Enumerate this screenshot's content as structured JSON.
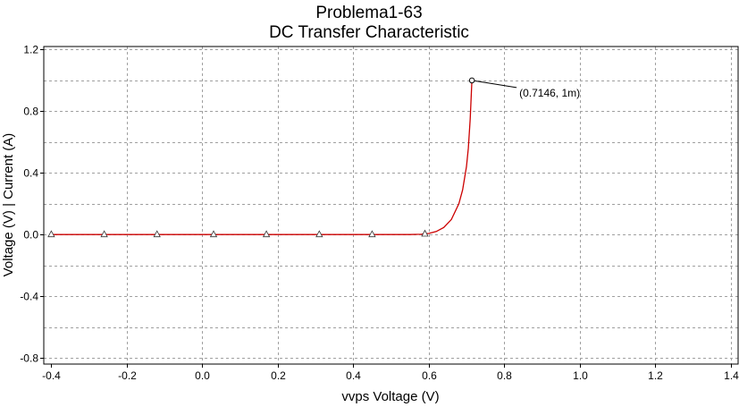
{
  "chart_data": {
    "type": "line",
    "title": "Problema1-63",
    "subtitle": "DC Transfer Characteristic",
    "xlabel": "vvps Voltage (V)",
    "ylabel": "Voltage (V) | Current (A)",
    "xlim": [
      -0.42,
      1.42
    ],
    "ylim": [
      -0.84,
      1.22
    ],
    "x_ticks": [
      -0.4,
      -0.2,
      0.0,
      0.2,
      0.4,
      0.6,
      0.8,
      1.0,
      1.2,
      1.4
    ],
    "x_tick_labels": [
      "-0.4",
      "-0.2",
      "0.0",
      "0.2",
      "0.4",
      "0.6",
      "0.8",
      "1.0",
      "1.2",
      "1.4"
    ],
    "y_ticks": [
      1.2,
      0.8,
      0.4,
      0.0,
      -0.4,
      -0.8
    ],
    "y_tick_labels": [
      "1.2",
      "0.8",
      "0.4",
      "0.0",
      "-0.4",
      "-0.8"
    ],
    "y_grid_minor": [
      1.0,
      0.6,
      0.2,
      -0.2,
      -0.6
    ],
    "grid": true,
    "series": [
      {
        "color": "#cc0000",
        "marker": "triangle",
        "marker_x": [
          -0.4,
          -0.26,
          -0.12,
          0.03,
          0.17,
          0.31,
          0.45,
          0.59
        ],
        "x": [
          -0.4,
          0.0,
          0.4,
          0.55,
          0.58,
          0.6,
          0.62,
          0.64,
          0.66,
          0.68,
          0.69,
          0.7,
          0.705,
          0.71,
          0.7146
        ],
        "y": [
          0.0,
          0.0,
          0.0,
          0.0,
          0.002,
          0.007,
          0.02,
          0.046,
          0.098,
          0.2,
          0.29,
          0.44,
          0.56,
          0.75,
          1.0
        ]
      }
    ],
    "annotation": {
      "text": "(0.7146, 1m)",
      "x": 0.7146,
      "y": 1.0
    }
  }
}
